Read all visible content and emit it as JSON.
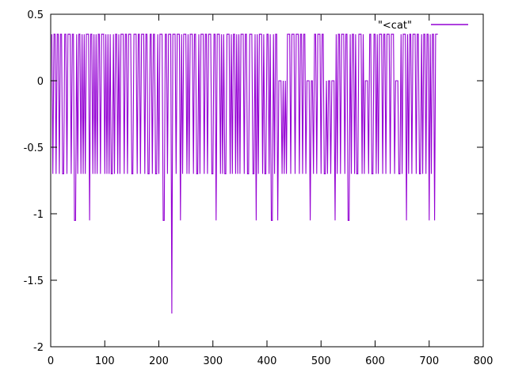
{
  "chart": {
    "background": "#ffffff",
    "border_color": "#000000",
    "text_color": "#000000"
  },
  "chart_data": {
    "type": "line",
    "title": "",
    "xlabel": "",
    "ylabel": "",
    "xlim": [
      0,
      800
    ],
    "ylim": [
      -2,
      0.5
    ],
    "xticks": [
      0,
      100,
      200,
      300,
      400,
      500,
      600,
      700,
      800
    ],
    "yticks": [
      0.5,
      0,
      -0.5,
      -1,
      -1.5,
      -2
    ],
    "grid": false,
    "legend": {
      "label": "\"<cat\"",
      "position": "top-right"
    },
    "series": [
      {
        "name": "\"<cat\"",
        "color": "#9400d3",
        "style": "dense-square-wave",
        "signal_model": {
          "x_start": 2,
          "x_end": 716,
          "step": 2,
          "high_level": 0.35,
          "low_level": -0.7,
          "dip_level": -1.05,
          "deep_spike": {
            "x": 220,
            "value": -1.75
          },
          "zero_top_intervals": [
            [
              421,
              434
            ],
            [
              472,
              483
            ],
            [
              508,
              525
            ],
            [
              580,
              588
            ],
            [
              636,
              643
            ]
          ],
          "dip_clusters": [
            [
              400,
              455
            ],
            [
              500,
              550
            ],
            [
              645,
              712
            ]
          ],
          "dip_probability": 0.12,
          "dip_cluster_probability": 0.3,
          "seed": 1337
        }
      }
    ]
  }
}
